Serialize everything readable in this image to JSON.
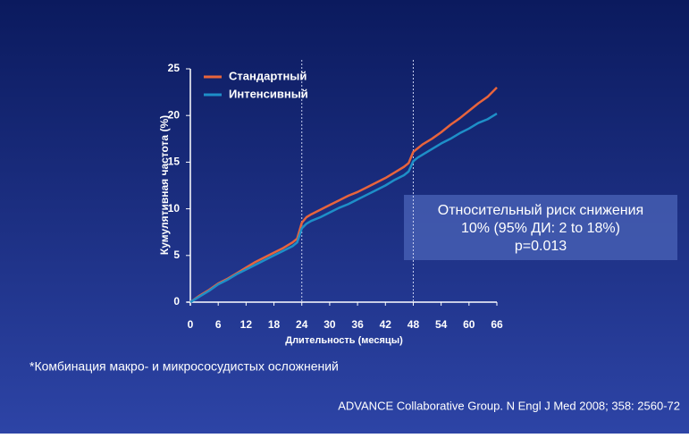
{
  "chart_data": {
    "type": "line",
    "xlabel": "Длительность (месяцы)",
    "ylabel": "Кумулятивная частота (%)",
    "xlim": [
      0,
      66
    ],
    "xticks": [
      0,
      6,
      12,
      18,
      24,
      30,
      36,
      42,
      48,
      54,
      60,
      66
    ],
    "ylim": [
      0,
      25
    ],
    "yticks": [
      0,
      5,
      10,
      15,
      20,
      25
    ],
    "vlines": [
      24,
      48
    ],
    "legend": "upper left",
    "x": [
      0,
      2,
      4,
      6,
      8,
      10,
      12,
      14,
      16,
      18,
      20,
      22,
      23,
      24,
      25,
      26,
      28,
      30,
      32,
      34,
      36,
      38,
      40,
      42,
      44,
      46,
      47,
      48,
      49,
      50,
      52,
      54,
      56,
      58,
      60,
      62,
      64,
      66
    ],
    "series": [
      {
        "name": "Стандартный",
        "color": "#e8643c",
        "values": [
          0,
          0.7,
          1.3,
          2.0,
          2.5,
          3.1,
          3.7,
          4.3,
          4.8,
          5.3,
          5.8,
          6.4,
          6.8,
          8.5,
          9.1,
          9.4,
          9.9,
          10.4,
          10.9,
          11.4,
          11.8,
          12.3,
          12.8,
          13.3,
          13.9,
          14.5,
          14.9,
          16.1,
          16.5,
          16.9,
          17.5,
          18.2,
          19.0,
          19.7,
          20.5,
          21.3,
          22.0,
          23.0
        ]
      },
      {
        "name": "Интенсивный",
        "color": "#1e8fc8",
        "values": [
          0,
          0.6,
          1.2,
          1.9,
          2.4,
          3.0,
          3.5,
          4.0,
          4.5,
          5.0,
          5.5,
          6.0,
          6.4,
          7.9,
          8.4,
          8.7,
          9.1,
          9.6,
          10.1,
          10.5,
          11.0,
          11.5,
          12.0,
          12.5,
          13.1,
          13.6,
          14.0,
          15.1,
          15.5,
          15.8,
          16.4,
          17.0,
          17.5,
          18.1,
          18.6,
          19.2,
          19.6,
          20.2
        ]
      }
    ],
    "annotation": [
      "Относительный риск снижения",
      "10% (95% ДИ: 2 to 18%)",
      "p=0.013"
    ],
    "footnote": "*Комбинация макро- и микрососудистых осложнений",
    "source": "ADVANCE Collaborative Group. N Engl J Med 2008; 358: 2560-72"
  }
}
